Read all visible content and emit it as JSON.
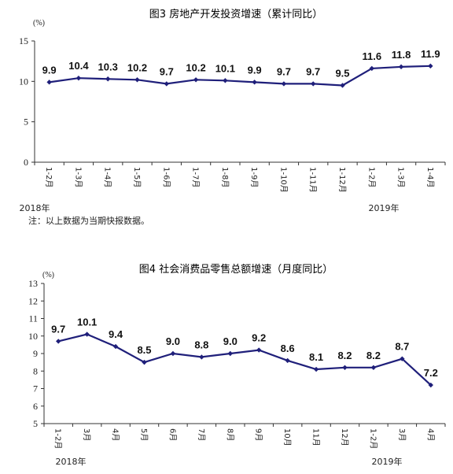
{
  "chart_data": [
    {
      "type": "line",
      "title": "图3 房地产开发投资增速（累计同比）",
      "unit": "(%)",
      "ylim": [
        0,
        15
      ],
      "yticks": [
        "0",
        "5",
        "10",
        "15"
      ],
      "categories": [
        "1-2月",
        "1-3月",
        "1-4月",
        "1-5月",
        "1-6月",
        "1-7月",
        "1-8月",
        "1-9月",
        "1-10月",
        "1-11月",
        "1-12月",
        "1-2月",
        "1-3月",
        "1-4月"
      ],
      "values": [
        9.9,
        10.4,
        10.3,
        10.2,
        9.7,
        10.2,
        10.1,
        9.9,
        9.7,
        9.7,
        9.5,
        11.6,
        11.8,
        11.9
      ],
      "labels": [
        "9.9",
        "10.4",
        "10.3",
        "10.2",
        "9.7",
        "10.2",
        "10.1",
        "9.9",
        "9.7",
        "9.7",
        "9.5",
        "11.6",
        "11.8",
        "11.9"
      ],
      "year_labels": [
        "2018年",
        "2019年"
      ],
      "note": "注：以上数据为当期快报数据。",
      "grid": false,
      "legend": "none"
    },
    {
      "type": "line",
      "title": "图4 社会消费品零售总额增速（月度同比）",
      "unit": "(%)",
      "ylim": [
        5,
        13
      ],
      "yticks": [
        "5",
        "6",
        "7",
        "8",
        "9",
        "10",
        "11",
        "12",
        "13"
      ],
      "categories": [
        "1-2月",
        "3月",
        "4月",
        "5月",
        "6月",
        "7月",
        "8月",
        "9月",
        "10月",
        "11月",
        "12月",
        "1-2月",
        "3月",
        "4月"
      ],
      "values": [
        9.7,
        10.1,
        9.4,
        8.5,
        9.0,
        8.8,
        9.0,
        9.2,
        8.6,
        8.1,
        8.2,
        8.2,
        8.7,
        7.2
      ],
      "labels": [
        "9.7",
        "10.1",
        "9.4",
        "8.5",
        "9.0",
        "8.8",
        "9.0",
        "9.2",
        "8.6",
        "8.1",
        "8.2",
        "8.2",
        "8.7",
        "7.2"
      ],
      "year_labels": [
        "2018年",
        "2019年"
      ],
      "grid": false,
      "legend": "none"
    }
  ]
}
